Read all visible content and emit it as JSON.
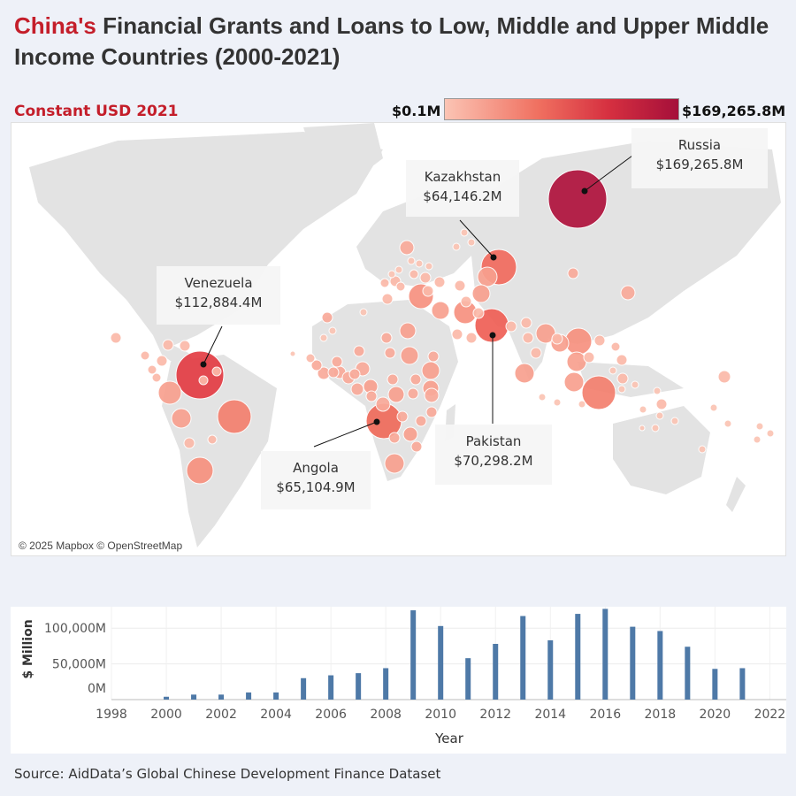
{
  "header": {
    "title_highlight": "China's",
    "title_rest": " Financial Grants and Loans to Low, Middle and Upper Middle Income Countries (2000-2021)",
    "subtitle": "Constant USD 2021"
  },
  "legend": {
    "min_label": "$0.1M",
    "max_label": "$169,265.8M",
    "color_low": "#fbc4b4",
    "color_high": "#a50f3a"
  },
  "map": {
    "attribution": "© 2025 Mapbox © OpenStreetMap",
    "callouts": [
      {
        "country": "Russia",
        "value": "$169,265.8M"
      },
      {
        "country": "Kazakhstan",
        "value": "$64,146.2M"
      },
      {
        "country": "Venezuela",
        "value": "$112,884.4M"
      },
      {
        "country": "Pakistan",
        "value": "$70,298.2M"
      },
      {
        "country": "Angola",
        "value": "$65,104.9M"
      }
    ]
  },
  "chart_data": {
    "type": "bar",
    "xlabel": "Year",
    "ylabel": "$ Million",
    "x_ticks": [
      "1998",
      "2000",
      "2002",
      "2004",
      "2006",
      "2008",
      "2010",
      "2012",
      "2014",
      "2016",
      "2018",
      "2020",
      "2022"
    ],
    "y_ticks": [
      "0M",
      "50,000M",
      "100,000M"
    ],
    "ylim": [
      0,
      130000
    ],
    "color": "#4e79a7",
    "categories": [
      2000,
      2001,
      2002,
      2003,
      2004,
      2005,
      2006,
      2007,
      2008,
      2009,
      2010,
      2011,
      2012,
      2013,
      2014,
      2015,
      2016,
      2017,
      2018,
      2019,
      2020,
      2021
    ],
    "values": [
      4000,
      7000,
      7000,
      10000,
      10000,
      30000,
      34000,
      37000,
      44000,
      125000,
      103000,
      58000,
      78000,
      117000,
      83000,
      120000,
      127000,
      102000,
      96000,
      74000,
      43000,
      44000
    ]
  },
  "footer": {
    "source": "Source: AidData’s Global Chinese Development Finance Dataset"
  }
}
